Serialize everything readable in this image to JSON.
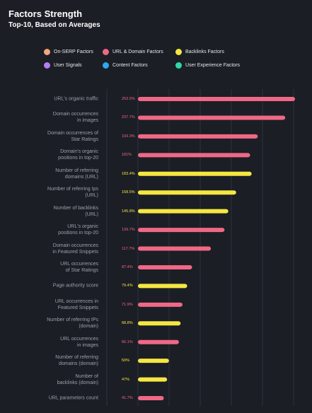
{
  "chart_data": {
    "type": "bar",
    "orientation": "horizontal",
    "title": "Factors Strength",
    "subtitle": "Top-10, Based on Averages",
    "legend": [
      {
        "name": "On-SERP Factors",
        "color": "#f4a77a"
      },
      {
        "name": "URL & Domain Factors",
        "color": "#f06886"
      },
      {
        "name": "Backlinks Factors",
        "color": "#f5e642"
      },
      {
        "name": "User Signals",
        "color": "#b77cf0"
      },
      {
        "name": "Content Factors",
        "color": "#2ea8f2"
      },
      {
        "name": "User Experience Factors",
        "color": "#2fd8a8"
      }
    ],
    "categories": [
      "URL's organic traffic",
      "Domain occurrences\nin images",
      "Domain occurrences of\nStar Ratings",
      "Domain's organic\npositions in top-20",
      "Number of referring\ndomains (URL)",
      "Number of referring Ips\n(URL)",
      "Number of backlinks\n(URL)",
      "URL's organic\npositions in top-20",
      "Domain occurrences\nin Featured Snippets",
      "URL occurrences\nof Star Ratings",
      "Page authority score",
      "URL occurrences in\nFeatured Snippets",
      "Number of referring IPs\n(domain)",
      "URL occurrences\nin images",
      "Number of referring\ndomains (domain)",
      "Number of\nbacklinks (domain)",
      "URL parameters count"
    ],
    "values": [
      253.5,
      237.7,
      193.3,
      181,
      183.4,
      158.5,
      145.8,
      139.7,
      117.7,
      87.4,
      79.4,
      71.9,
      68.8,
      66.1,
      50,
      47,
      41.7
    ],
    "value_labels": [
      "253.5%",
      "237.7%",
      "193.3%",
      "181%",
      "183.4%",
      "158.5%",
      "145.8%",
      "139.7%",
      "117.7%",
      "87.4%",
      "79.4%",
      "71.9%",
      "68.8%",
      "66.1%",
      "50%",
      "47%",
      "41.7%"
    ],
    "colors": [
      "#f06886",
      "#f06886",
      "#f06886",
      "#f06886",
      "#f5e642",
      "#f5e642",
      "#f5e642",
      "#f06886",
      "#f06886",
      "#f06886",
      "#f5e642",
      "#f06886",
      "#f5e642",
      "#f06886",
      "#f5e642",
      "#f5e642",
      "#f06886"
    ],
    "grid": true
  }
}
